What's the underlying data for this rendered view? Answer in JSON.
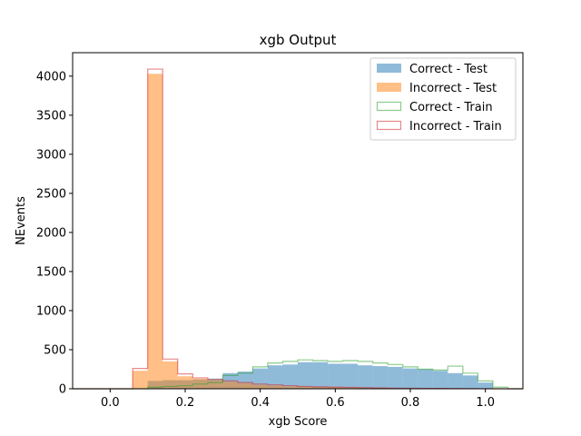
{
  "chart_data": {
    "type": "histogram",
    "title": "xgb Output",
    "xlabel": "xgb Score",
    "ylabel": "NEvents",
    "xlim": [
      -0.1,
      1.1
    ],
    "ylim": [
      0,
      4300
    ],
    "xticks": [
      0.0,
      0.2,
      0.4,
      0.6,
      0.8,
      1.0
    ],
    "xtick_labels": [
      "0.0",
      "0.2",
      "0.4",
      "0.6",
      "0.8",
      "1.0"
    ],
    "yticks": [
      0,
      500,
      1000,
      1500,
      2000,
      2500,
      3000,
      3500,
      4000
    ],
    "ytick_labels": [
      "0",
      "500",
      "1000",
      "1500",
      "2000",
      "2500",
      "3000",
      "3500",
      "4000"
    ],
    "legend_position": "top-right",
    "bins": {
      "start": -0.1,
      "width": 0.04,
      "count": 30
    },
    "series": [
      {
        "name": "Correct - Test",
        "style": "filled",
        "color": "#1f77b4",
        "alpha": 0.5,
        "values": [
          0,
          0,
          0,
          0,
          0,
          100,
          110,
          110,
          120,
          130,
          200,
          220,
          260,
          300,
          310,
          340,
          340,
          320,
          320,
          300,
          290,
          280,
          260,
          250,
          230,
          200,
          170,
          80,
          0,
          0
        ]
      },
      {
        "name": "Incorrect - Test",
        "style": "filled",
        "color": "#ff7f0e",
        "alpha": 0.5,
        "values": [
          0,
          0,
          0,
          0,
          230,
          4030,
          350,
          160,
          130,
          110,
          90,
          70,
          50,
          40,
          30,
          25,
          20,
          20,
          15,
          10,
          10,
          5,
          5,
          5,
          0,
          0,
          0,
          0,
          0,
          0
        ]
      },
      {
        "name": "Correct - Train",
        "style": "step",
        "color": "#2ca02c",
        "alpha": 0.55,
        "values": [
          0,
          0,
          0,
          0,
          0,
          20,
          30,
          40,
          60,
          80,
          170,
          200,
          280,
          330,
          350,
          370,
          360,
          350,
          360,
          350,
          330,
          310,
          280,
          250,
          240,
          290,
          200,
          100,
          20,
          0
        ]
      },
      {
        "name": "Incorrect - Train",
        "style": "step",
        "color": "#d62728",
        "alpha": 0.55,
        "values": [
          0,
          0,
          0,
          0,
          260,
          4090,
          380,
          190,
          140,
          120,
          100,
          80,
          60,
          50,
          40,
          30,
          25,
          20,
          18,
          15,
          10,
          8,
          6,
          5,
          4,
          3,
          2,
          1,
          0,
          0
        ]
      }
    ]
  }
}
